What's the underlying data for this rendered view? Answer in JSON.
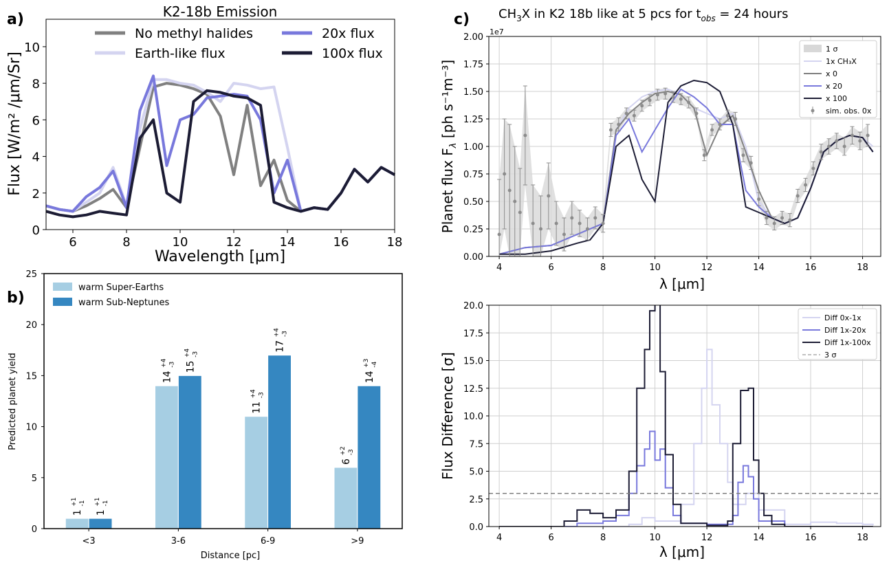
{
  "panel_labels": {
    "a": "a)",
    "b": "b)",
    "c": "c)"
  },
  "colors": {
    "no_methyl": "#808080",
    "earth_like": "#d4d4f0",
    "x20": "#7878dc",
    "x100": "#1c1c34",
    "bar_super_earth": "#a6cee3",
    "bar_sub_neptune": "#3587c1",
    "sigma_band": "#d8d8d8",
    "sim_obs": "#8c8c8c",
    "threshold": "#808080"
  },
  "chart_data": [
    {
      "id": "a",
      "type": "line",
      "title": "K2-18b Emission",
      "xlabel": "Wavelength [μm]",
      "ylabel": "Flux [W/m² /μm/Sr]",
      "xlim": [
        5,
        18
      ],
      "ylim": [
        0,
        11.5
      ],
      "xticks": [
        6,
        8,
        10,
        12,
        14,
        16,
        18
      ],
      "yticks": [
        0,
        2,
        4,
        6,
        8,
        10
      ],
      "grid": false,
      "legend_placement": "top",
      "series": [
        {
          "name": "No methyl halides",
          "color_key": "no_methyl",
          "x": [
            5,
            5.5,
            6,
            6.5,
            7,
            7.5,
            8,
            8.5,
            9,
            9.5,
            10,
            10.5,
            11,
            11.5,
            12,
            12.5,
            13,
            13.5,
            14,
            14.5,
            15,
            15.5,
            16,
            16.5,
            17,
            17.5,
            18
          ],
          "y": [
            1.3,
            1.1,
            1.0,
            1.3,
            1.7,
            2.2,
            1.2,
            4.5,
            7.8,
            8.0,
            7.9,
            7.7,
            7.4,
            6.2,
            3.0,
            6.8,
            2.4,
            3.8,
            1.6,
            1.0,
            1.2,
            1.1,
            2.0,
            3.3,
            2.6,
            3.4,
            3.0
          ]
        },
        {
          "name": "Earth-like flux",
          "color_key": "earth_like",
          "x": [
            5,
            5.5,
            6,
            6.5,
            7,
            7.5,
            8,
            8.5,
            9,
            9.5,
            10,
            10.5,
            11,
            11.5,
            12,
            12.5,
            13,
            13.5,
            14,
            14.5,
            15,
            15.5,
            16,
            16.5,
            17,
            17.5,
            18
          ],
          "y": [
            1.3,
            1.1,
            1.0,
            1.5,
            2.0,
            3.4,
            1.3,
            5.5,
            8.2,
            8.2,
            8.0,
            7.9,
            7.5,
            7.0,
            8.0,
            7.9,
            7.7,
            7.8,
            4.5,
            1.0,
            1.2,
            1.1,
            2.0,
            3.3,
            2.6,
            3.4,
            3.0
          ]
        },
        {
          "name": "20x flux",
          "color_key": "x20",
          "x": [
            5,
            5.5,
            6,
            6.5,
            7,
            7.5,
            8,
            8.5,
            9,
            9.5,
            10,
            10.5,
            11,
            11.5,
            12,
            12.5,
            13,
            13.5,
            14,
            14.5,
            15,
            15.5,
            16,
            16.5,
            17,
            17.5,
            18
          ],
          "y": [
            1.3,
            1.1,
            1.0,
            1.8,
            2.3,
            3.2,
            1.2,
            6.5,
            8.4,
            3.5,
            6.0,
            6.3,
            7.2,
            7.3,
            7.4,
            7.3,
            6.0,
            2.0,
            3.8,
            1.0,
            1.2,
            1.1,
            2.0,
            3.3,
            2.6,
            3.4,
            3.0
          ]
        },
        {
          "name": "100x flux",
          "color_key": "x100",
          "x": [
            5,
            5.5,
            6,
            6.5,
            7,
            7.5,
            8,
            8.5,
            9,
            9.5,
            10,
            10.5,
            11,
            11.5,
            12,
            12.5,
            13,
            13.5,
            14,
            14.5,
            15,
            15.5,
            16,
            16.5,
            17,
            17.5,
            18
          ],
          "y": [
            1.0,
            0.8,
            0.7,
            0.8,
            1.0,
            0.9,
            0.8,
            5.0,
            6.0,
            2.0,
            1.5,
            7.0,
            7.6,
            7.5,
            7.3,
            7.2,
            6.8,
            1.5,
            1.2,
            1.0,
            1.2,
            1.1,
            2.0,
            3.3,
            2.6,
            3.4,
            3.0
          ]
        }
      ]
    },
    {
      "id": "b",
      "type": "bar",
      "xlabel": "Distance [pc]",
      "ylabel": "Predicted planet yield",
      "ylim": [
        0,
        25
      ],
      "yticks": [
        0,
        5,
        10,
        15,
        20,
        25
      ],
      "grid": false,
      "legend_placement": "top-left",
      "categories": [
        "<3",
        "3-6",
        "6-9",
        ">9"
      ],
      "series": [
        {
          "name": "warm Super-Earths",
          "color_key": "bar_super_earth",
          "values": [
            1,
            14,
            11,
            6
          ],
          "labels": [
            {
              "value": "1",
              "plus": "+1",
              "minus": "-1"
            },
            {
              "value": "14",
              "plus": "+4",
              "minus": "-3"
            },
            {
              "value": "11",
              "plus": "+4",
              "minus": "-3"
            },
            {
              "value": "6",
              "plus": "+2",
              "minus": "-3"
            }
          ]
        },
        {
          "name": "warm Sub-Neptunes",
          "color_key": "bar_sub_neptune",
          "values": [
            1,
            15,
            17,
            14
          ],
          "labels": [
            {
              "value": "1",
              "plus": "+1",
              "minus": "-1"
            },
            {
              "value": "15",
              "plus": "+4",
              "minus": "-3"
            },
            {
              "value": "17",
              "plus": "+4",
              "minus": "-3"
            },
            {
              "value": "14",
              "plus": "+3",
              "minus": "-4"
            }
          ]
        }
      ]
    },
    {
      "id": "c_top",
      "type": "line",
      "title_main": "CH",
      "title_sub3": "3",
      "title_mid": "X in K2 18b like at 5 pcs for t",
      "title_sub_obs": "obs",
      "title_tail": " =  24 hours",
      "xlabel": "λ [μm]",
      "ylabel": "Planet flux F",
      "ylabel_sub": "λ",
      "ylabel_units": " [ph s⁻¹m⁻³]",
      "scale_note": "1e7",
      "xlim": [
        3.6,
        18.7
      ],
      "ylim": [
        0,
        2.0
      ],
      "xticks": [
        4,
        6,
        8,
        10,
        12,
        14,
        16,
        18
      ],
      "yticks": [
        "0.00",
        "0.25",
        "0.50",
        "0.75",
        "1.00",
        "1.25",
        "1.50",
        "1.75",
        "2.00"
      ],
      "grid": true,
      "legend_placement": "top-right",
      "legend": [
        "1 σ",
        "1x CH₃X",
        "x 0",
        "x 20",
        "x 100",
        "sim. obs. 0x"
      ],
      "series": [
        {
          "name": "1x CH₃X",
          "color_key": "earth_like",
          "x": [
            4,
            5,
            6,
            7,
            7.5,
            8,
            8.5,
            9,
            9.5,
            10,
            10.5,
            11,
            11.5,
            12,
            12.5,
            13,
            13.5,
            14,
            14.5,
            15,
            15.5,
            16,
            16.5,
            17,
            17.5,
            18,
            18.4
          ],
          "y": [
            0.02,
            0.08,
            0.1,
            0.2,
            0.25,
            0.3,
            1.15,
            1.35,
            1.45,
            1.5,
            1.52,
            1.47,
            1.35,
            1.3,
            1.25,
            1.3,
            1.0,
            0.5,
            0.35,
            0.3,
            0.35,
            0.62,
            0.95,
            1.05,
            1.1,
            1.08,
            1.0
          ]
        },
        {
          "name": "x 0",
          "color_key": "no_methyl",
          "x": [
            4,
            5,
            6,
            7,
            7.5,
            8,
            8.5,
            9,
            9.5,
            10,
            10.5,
            11,
            11.5,
            12,
            12.5,
            13,
            13.5,
            14,
            14.5,
            15,
            15.5,
            16,
            16.5,
            17,
            17.5,
            18,
            18.4
          ],
          "y": [
            0.02,
            0.08,
            0.1,
            0.2,
            0.25,
            0.3,
            1.15,
            1.3,
            1.4,
            1.48,
            1.5,
            1.47,
            1.35,
            0.92,
            1.18,
            1.28,
            0.95,
            0.6,
            0.35,
            0.3,
            0.35,
            0.62,
            0.95,
            1.05,
            1.1,
            1.08,
            0.95
          ]
        },
        {
          "name": "x 20",
          "color_key": "x20",
          "x": [
            4,
            5,
            6,
            7,
            7.5,
            8,
            8.5,
            9,
            9.5,
            10,
            10.5,
            11,
            11.5,
            12,
            12.5,
            13,
            13.5,
            14,
            14.5,
            15,
            15.5,
            16,
            16.5,
            17,
            17.5,
            18,
            18.4
          ],
          "y": [
            0.02,
            0.08,
            0.1,
            0.2,
            0.25,
            0.3,
            1.1,
            1.25,
            0.95,
            1.15,
            1.35,
            1.52,
            1.45,
            1.35,
            1.2,
            1.2,
            0.6,
            0.45,
            0.35,
            0.3,
            0.35,
            0.62,
            0.95,
            1.05,
            1.1,
            1.08,
            0.95
          ]
        },
        {
          "name": "x 100",
          "color_key": "x100",
          "x": [
            4,
            5,
            6,
            7,
            7.5,
            8,
            8.5,
            9,
            9.5,
            10,
            10.5,
            11,
            11.5,
            12,
            12.5,
            13,
            13.5,
            14,
            14.5,
            15,
            15.5,
            16,
            16.5,
            17,
            17.5,
            18,
            18.4
          ],
          "y": [
            0.02,
            0.02,
            0.05,
            0.12,
            0.15,
            0.3,
            1.0,
            1.1,
            0.7,
            0.5,
            1.4,
            1.55,
            1.6,
            1.58,
            1.5,
            1.2,
            0.45,
            0.4,
            0.35,
            0.3,
            0.35,
            0.62,
            0.95,
            1.05,
            1.1,
            1.08,
            0.95
          ]
        }
      ],
      "sim_obs": {
        "name": "sim. obs. 0x",
        "x": [
          4,
          4.2,
          4.4,
          4.6,
          4.8,
          5.0,
          5.3,
          5.6,
          5.9,
          6.2,
          6.5,
          6.8,
          7.1,
          7.4,
          7.7,
          8.0,
          8.3,
          8.6,
          8.9,
          9.2,
          9.5,
          9.8,
          10.1,
          10.4,
          10.7,
          11.0,
          11.3,
          11.6,
          11.9,
          12.2,
          12.5,
          12.8,
          13.1,
          13.4,
          13.7,
          14.0,
          14.3,
          14.6,
          14.9,
          15.2,
          15.5,
          15.8,
          16.1,
          16.4,
          16.7,
          17.0,
          17.3,
          17.6,
          17.9,
          18.2
        ],
        "y": [
          0.2,
          0.75,
          0.6,
          0.5,
          0.4,
          1.1,
          0.3,
          0.25,
          0.55,
          0.3,
          0.2,
          0.35,
          0.3,
          0.25,
          0.35,
          0.3,
          1.15,
          1.2,
          1.3,
          1.28,
          1.37,
          1.42,
          1.47,
          1.48,
          1.45,
          1.43,
          1.4,
          1.3,
          0.92,
          1.15,
          1.2,
          1.28,
          1.25,
          0.92,
          0.85,
          0.52,
          0.35,
          0.3,
          0.35,
          0.33,
          0.55,
          0.65,
          0.8,
          0.95,
          1.0,
          1.05,
          1.0,
          1.1,
          1.05,
          1.1
        ],
        "err": [
          0.5,
          0.5,
          0.6,
          0.5,
          0.4,
          0.45,
          0.35,
          0.3,
          0.3,
          0.2,
          0.15,
          0.15,
          0.12,
          0.1,
          0.1,
          0.08,
          0.06,
          0.06,
          0.05,
          0.05,
          0.05,
          0.05,
          0.05,
          0.05,
          0.05,
          0.05,
          0.05,
          0.05,
          0.05,
          0.05,
          0.05,
          0.05,
          0.06,
          0.06,
          0.06,
          0.06,
          0.06,
          0.06,
          0.06,
          0.06,
          0.06,
          0.06,
          0.06,
          0.07,
          0.07,
          0.07,
          0.08,
          0.08,
          0.08,
          0.1
        ]
      }
    },
    {
      "id": "c_bottom",
      "type": "line",
      "xlabel": "λ [μm]",
      "ylabel": "Flux Difference [σ]",
      "xlim": [
        3.6,
        18.7
      ],
      "ylim": [
        0,
        20
      ],
      "xticks": [
        4,
        6,
        8,
        10,
        12,
        14,
        16,
        18
      ],
      "yticks": [
        "0.0",
        "2.5",
        "5.0",
        "7.5",
        "10.0",
        "12.5",
        "15.0",
        "17.5",
        "20.0"
      ],
      "grid": true,
      "legend_placement": "top-right",
      "threshold": {
        "name": "3 σ",
        "value": 3
      },
      "series": [
        {
          "name": "Diff 0x-1x",
          "color_key": "earth_like",
          "x": [
            4,
            6,
            8,
            9,
            9.5,
            10,
            10.5,
            11,
            11.5,
            11.8,
            12,
            12.2,
            12.5,
            12.8,
            13,
            13.5,
            14,
            15,
            16,
            17,
            18,
            18.4
          ],
          "y": [
            0,
            0,
            0,
            0.2,
            0.8,
            0.5,
            0.5,
            2.0,
            7.5,
            12.5,
            16.0,
            11.0,
            7.5,
            4.0,
            2.0,
            3.0,
            1.5,
            0.2,
            0.4,
            0.3,
            0.2,
            0.1
          ]
        },
        {
          "name": "Diff 1x-20x",
          "color_key": "x20",
          "x": [
            4,
            6,
            7,
            8,
            8.5,
            9,
            9.3,
            9.6,
            9.8,
            10,
            10.2,
            10.4,
            10.7,
            11,
            12,
            13,
            13.2,
            13.4,
            13.6,
            13.8,
            14,
            15,
            18.4
          ],
          "y": [
            0,
            0,
            0.3,
            0.5,
            1.0,
            3.0,
            5.5,
            7.0,
            8.6,
            6.0,
            7.0,
            3.5,
            1.0,
            0.3,
            0.2,
            1.0,
            4.0,
            5.5,
            4.5,
            2.5,
            0.5,
            0,
            0
          ]
        },
        {
          "name": "Diff 1x-100x",
          "color_key": "x100",
          "x": [
            4,
            6,
            6.5,
            7,
            7.5,
            8,
            8.5,
            9,
            9.3,
            9.6,
            9.8,
            10,
            10.2,
            10.4,
            10.7,
            11,
            12,
            12.8,
            13,
            13.3,
            13.6,
            13.8,
            14,
            14.2,
            14.5,
            15,
            18.4
          ],
          "y": [
            0,
            0,
            0.5,
            1.5,
            1.2,
            0.8,
            1.5,
            5.0,
            12.5,
            16.0,
            19.5,
            20.5,
            14.0,
            6.5,
            2.0,
            0.3,
            0.1,
            0.5,
            7.5,
            12.3,
            12.5,
            6.0,
            3.0,
            1.0,
            0.2,
            0,
            0
          ]
        }
      ]
    }
  ]
}
